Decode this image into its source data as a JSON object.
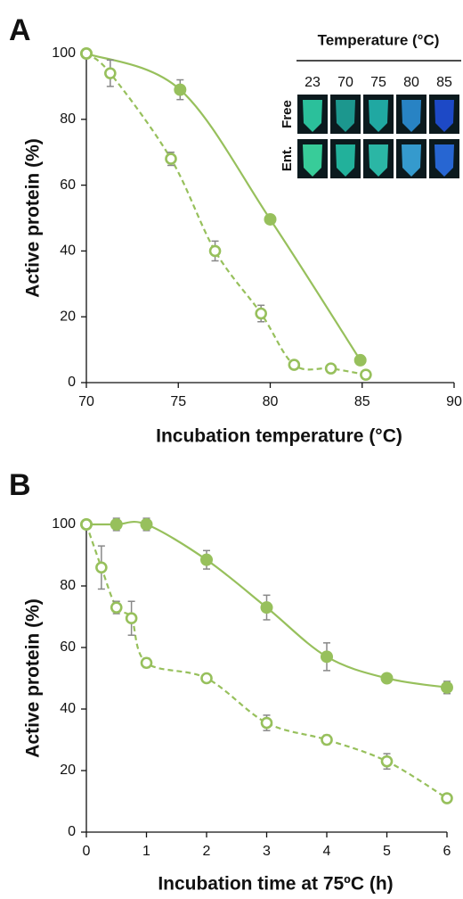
{
  "chart_data": [
    {
      "type": "line",
      "panel": "A",
      "xlabel": "Incubation temperature (°C)",
      "ylabel": "Active protein (%)",
      "xlim": [
        70,
        90
      ],
      "xticks": [
        70,
        75,
        80,
        85,
        90
      ],
      "ylim": [
        0,
        100
      ],
      "yticks": [
        0,
        20,
        40,
        60,
        80,
        100
      ],
      "series": [
        {
          "color": "#97c05c",
          "line_style": "solid",
          "marker": "filled",
          "x": [
            70,
            75.1,
            80,
            84.9
          ],
          "values": [
            100,
            89,
            49.6,
            6.8
          ],
          "errors": [
            null,
            3,
            null,
            null
          ]
        },
        {
          "color": "#97c05c",
          "line_style": "dashed",
          "marker": "open",
          "x": [
            70,
            71.3,
            74.6,
            77.0,
            79.5,
            81.3,
            83.3,
            85.2
          ],
          "values": [
            100,
            94,
            68,
            40,
            21,
            5.4,
            4.3,
            2.4
          ],
          "errors": [
            null,
            4,
            2,
            3,
            2.5,
            null,
            null,
            null
          ]
        }
      ],
      "inset": {
        "title": "Temperature (°C)",
        "columns": [
          "23",
          "70",
          "75",
          "80",
          "85"
        ],
        "rows": [
          "Free",
          "Ent."
        ]
      }
    },
    {
      "type": "line",
      "panel": "B",
      "xlabel": "Incubation time at 75ºC (h)",
      "ylabel": "Active protein (%)",
      "xlim": [
        0,
        6
      ],
      "xticks": [
        0,
        1,
        2,
        3,
        4,
        5,
        6
      ],
      "ylim": [
        0,
        100
      ],
      "yticks": [
        0,
        20,
        40,
        60,
        80,
        100
      ],
      "series": [
        {
          "color": "#97c05c",
          "line_style": "solid",
          "marker": "filled",
          "x": [
            0,
            0.5,
            1,
            2,
            3,
            4,
            5,
            6
          ],
          "values": [
            100,
            100,
            100,
            88.5,
            73,
            57,
            50,
            47
          ],
          "errors": [
            null,
            2,
            2,
            3,
            4,
            4.5,
            null,
            2
          ]
        },
        {
          "color": "#97c05c",
          "line_style": "dashed",
          "marker": "open",
          "x": [
            0,
            0.25,
            0.5,
            0.75,
            1,
            2,
            3,
            4,
            5,
            6
          ],
          "values": [
            100,
            86,
            73,
            69.5,
            55,
            50,
            35.5,
            30,
            23,
            11
          ],
          "errors": [
            null,
            7,
            2,
            5.5,
            1.5,
            null,
            2.5,
            1.5,
            2.5,
            null
          ]
        }
      ]
    }
  ]
}
